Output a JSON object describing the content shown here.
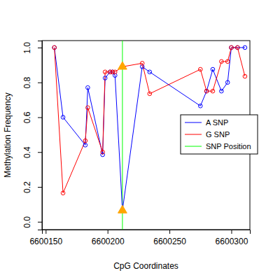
{
  "chart_data": {
    "type": "line",
    "x_label": "CpG Coordinates",
    "y_label": "Methylation Frequency",
    "xlim": [
      6600147,
      6600315
    ],
    "xticks": [
      6600150,
      6600200,
      6600250,
      6600300
    ],
    "ylim": [
      -0.045,
      1.04
    ],
    "yticks": [
      {
        "value": 0,
        "label": "0.0"
      },
      {
        "value": 0.2,
        "label": "0.2"
      },
      {
        "value": 0.4,
        "label": "0.4"
      },
      {
        "value": 0.6,
        "label": "0.6"
      },
      {
        "value": 0.8,
        "label": "0.8"
      },
      {
        "value": 1,
        "label": "1.0"
      }
    ],
    "grid": false,
    "legend": "right",
    "series": [
      {
        "name": "A SNP",
        "color": "#0000ff",
        "marker": "circle",
        "line_style": "solid",
        "x": [
          6600157,
          6600164,
          6600182,
          6600184,
          6600196,
          6600198,
          6600202,
          6600204,
          6600206,
          6600212,
          6600228,
          6600234,
          6600275,
          6600280,
          6600285,
          6600292,
          6600297,
          6600300,
          6600305,
          6600311
        ],
        "values": [
          1.0,
          0.6,
          0.44,
          0.77,
          0.385,
          0.825,
          0.86,
          0.86,
          0.84,
          0.065,
          0.89,
          0.86,
          0.665,
          0.75,
          0.875,
          0.75,
          0.8,
          1.0,
          1.0,
          1.0
        ]
      },
      {
        "name": "G SNP",
        "color": "#ff0000",
        "marker": "circle",
        "line_style": "solid",
        "x": [
          6600157,
          6600164,
          6600182,
          6600184,
          6600196,
          6600198,
          6600202,
          6600204,
          6600206,
          6600212,
          6600228,
          6600234,
          6600275,
          6600280,
          6600285,
          6600292,
          6600297,
          6600300,
          6600305,
          6600311
        ],
        "values": [
          1.0,
          0.165,
          0.465,
          0.655,
          0.4,
          0.86,
          0.86,
          0.86,
          0.86,
          0.89,
          0.91,
          0.735,
          0.875,
          0.75,
          0.75,
          0.92,
          0.92,
          1.0,
          1.0,
          0.835
        ]
      },
      {
        "name": "SNP Position",
        "color": "#00ff00",
        "type": "vline",
        "x": [
          6600212
        ],
        "snp_marker": {
          "color": "#ffa500",
          "marker": "triangle"
        }
      }
    ]
  }
}
